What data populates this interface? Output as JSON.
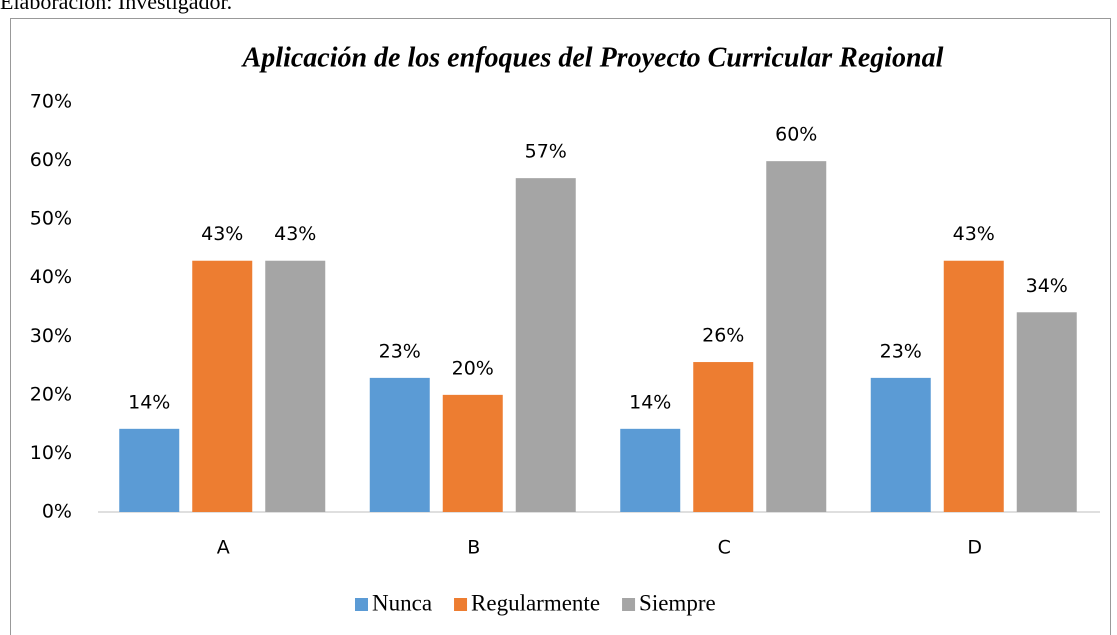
{
  "caption": "Elaboración: Investigador.",
  "chart_data": {
    "type": "bar",
    "title": "Aplicación de los enfoques del Proyecto Curricular Regional",
    "categories": [
      "A",
      "B",
      "C",
      "D"
    ],
    "series": [
      {
        "name": "Nunca",
        "color": "#5b9bd5",
        "values": [
          14.2,
          22.9,
          14.2,
          22.9
        ],
        "value_labels": [
          "14%",
          "23%",
          "14%",
          "23%"
        ]
      },
      {
        "name": "Regularmente",
        "color": "#ed7d31",
        "values": [
          42.9,
          20.0,
          25.6,
          42.9
        ],
        "value_labels": [
          "43%",
          "20%",
          "26%",
          "43%"
        ]
      },
      {
        "name": "Siempre",
        "color": "#a5a5a5",
        "values": [
          42.9,
          57.0,
          59.9,
          34.1
        ],
        "value_labels": [
          "43%",
          "57%",
          "60%",
          "34%"
        ]
      }
    ],
    "ylim": [
      0,
      70
    ],
    "yticks": [
      {
        "value": 0,
        "label": "0%"
      },
      {
        "value": 10,
        "label": "10%"
      },
      {
        "value": 20,
        "label": "20%"
      },
      {
        "value": 30,
        "label": "30%"
      },
      {
        "value": 40,
        "label": "40%"
      },
      {
        "value": 50,
        "label": "50%"
      },
      {
        "value": 60,
        "label": "60%"
      },
      {
        "value": 70,
        "label": "70%"
      }
    ],
    "grid": false,
    "legend": "bottom"
  }
}
